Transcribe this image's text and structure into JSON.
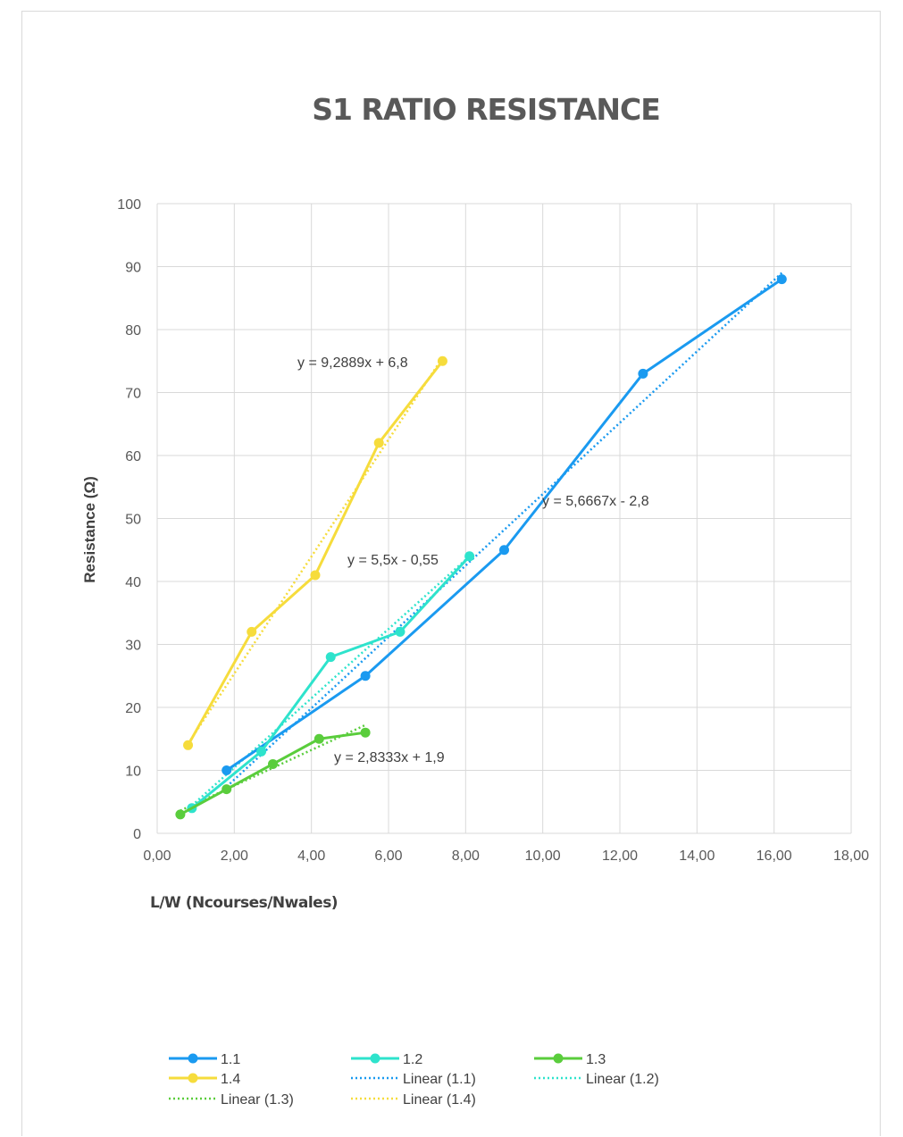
{
  "chart_data": {
    "type": "scatter",
    "title": "S1 RATIO RESISTANCE",
    "xlabel": "L/W (Ncourses/Nwales)",
    "ylabel": "Resistance (Ω)",
    "xlim": [
      0,
      18
    ],
    "ylim": [
      0,
      100
    ],
    "x_ticks": [
      "0,00",
      "2,00",
      "4,00",
      "6,00",
      "8,00",
      "10,00",
      "12,00",
      "14,00",
      "16,00",
      "18,00"
    ],
    "y_ticks": [
      "0",
      "10",
      "20",
      "30",
      "40",
      "50",
      "60",
      "70",
      "80",
      "90",
      "100"
    ],
    "grid": true,
    "legend_position": "bottom",
    "series": [
      {
        "name": "1.1",
        "color": "#1a9af0",
        "x": [
          1.8,
          5.4,
          9.0,
          12.6,
          16.2
        ],
        "y": [
          10,
          25,
          45,
          73,
          88
        ]
      },
      {
        "name": "1.2",
        "color": "#2ee3cc",
        "x": [
          0.9,
          2.7,
          4.5,
          6.3,
          8.1
        ],
        "y": [
          4,
          13,
          28,
          32,
          44
        ]
      },
      {
        "name": "1.3",
        "color": "#5acd3c",
        "x": [
          0.6,
          1.8,
          3.0,
          4.2,
          5.4
        ],
        "y": [
          3,
          7,
          11,
          15,
          16
        ]
      },
      {
        "name": "1.4",
        "color": "#f6dc3c",
        "x": [
          0.8,
          2.45,
          4.1,
          5.75,
          7.4
        ],
        "y": [
          14,
          32,
          41,
          62,
          75
        ]
      }
    ],
    "trendlines": [
      {
        "name": "Linear (1.1)",
        "color": "#1a9af0",
        "slope": 5.6667,
        "intercept": -2.8,
        "x_range": [
          1.8,
          16.2
        ],
        "equation": "y = 5,6667x - 2,8"
      },
      {
        "name": "Linear (1.2)",
        "color": "#2ee3cc",
        "slope": 5.5,
        "intercept": -0.55,
        "x_range": [
          0.9,
          8.1
        ],
        "equation": "y = 5,5x - 0,55"
      },
      {
        "name": "Linear (1.3)",
        "color": "#5acd3c",
        "slope": 2.8333,
        "intercept": 1.9,
        "x_range": [
          0.6,
          5.4
        ],
        "equation": "y = 2,8333x + 1,9"
      },
      {
        "name": "Linear (1.4)",
        "color": "#f6dc3c",
        "slope": 9.2889,
        "intercept": 6.8,
        "x_range": [
          0.8,
          7.4
        ],
        "equation": "y = 9,2889x + 6,8"
      }
    ],
    "legend_entries": [
      "1.1",
      "1.2",
      "1.3",
      "1.4",
      "Linear (1.1)",
      "Linear (1.2)",
      "Linear (1.3)",
      "Linear (1.4)"
    ]
  }
}
